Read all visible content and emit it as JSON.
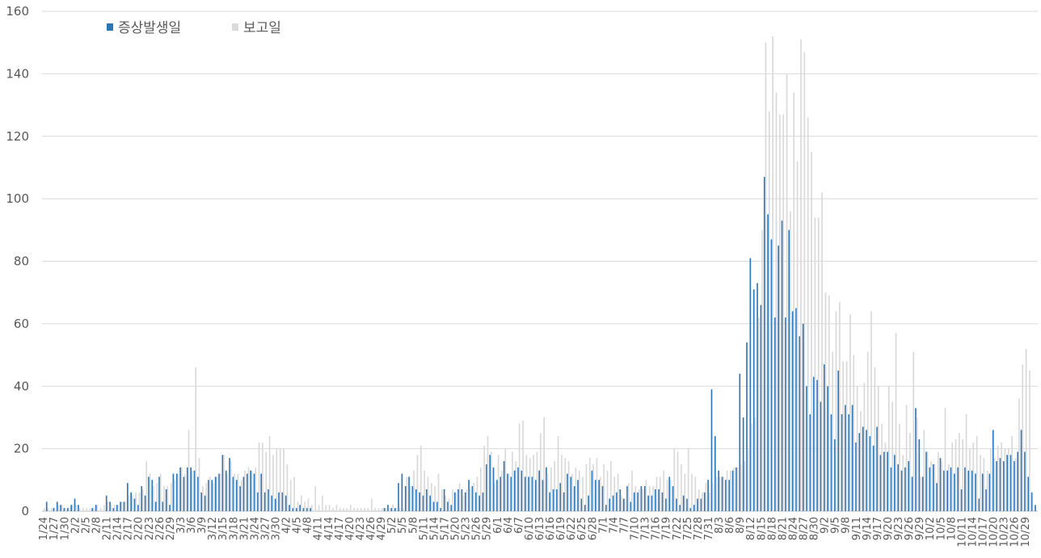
{
  "chart_data": {
    "type": "bar",
    "grouped": true,
    "ylim": [
      0,
      160
    ],
    "ytick_step": 20,
    "grid": "horizontal",
    "legend_position": "top-left",
    "start_date": "1/24",
    "end_date": "10/31",
    "x_tick_labels": [
      "1/24",
      "1/27",
      "1/30",
      "2/2",
      "2/5",
      "2/8",
      "2/11",
      "2/14",
      "2/17",
      "2/20",
      "2/23",
      "2/26",
      "2/29",
      "3/3",
      "3/6",
      "3/9",
      "3/12",
      "3/15",
      "3/18",
      "3/21",
      "3/24",
      "3/27",
      "3/30",
      "4/2",
      "4/5",
      "4/8",
      "4/11",
      "4/14",
      "4/17",
      "4/20",
      "4/23",
      "4/26",
      "4/29",
      "5/2",
      "5/5",
      "5/8",
      "5/11",
      "5/14",
      "5/17",
      "5/20",
      "5/23",
      "5/26",
      "5/29",
      "6/1",
      "6/4",
      "6/7",
      "6/10",
      "6/13",
      "6/16",
      "6/19",
      "6/22",
      "6/25",
      "6/28",
      "7/1",
      "7/4",
      "7/7",
      "7/10",
      "7/13",
      "7/16",
      "7/19",
      "7/22",
      "7/25",
      "7/28",
      "7/31",
      "8/3",
      "8/6",
      "8/9",
      "8/12",
      "8/15",
      "8/18",
      "8/21",
      "8/24",
      "8/27",
      "8/30",
      "9/2",
      "9/5",
      "9/8",
      "9/11",
      "9/14",
      "9/17",
      "9/20",
      "9/23",
      "9/26",
      "9/29",
      "10/2",
      "10/5",
      "10/8",
      "10/11",
      "10/14",
      "10/17",
      "10/20",
      "10/23",
      "10/26",
      "10/29"
    ],
    "series": [
      {
        "name": "증상발생일",
        "color": "#2e75b6",
        "values": [
          0,
          3,
          0,
          1,
          3,
          2,
          1,
          1,
          2,
          4,
          2,
          0,
          0,
          0,
          1,
          2,
          0,
          0,
          5,
          3,
          1,
          2,
          3,
          3,
          9,
          6,
          4,
          2,
          8,
          5,
          11,
          10,
          3,
          11,
          3,
          7,
          2,
          12,
          12,
          14,
          11,
          14,
          14,
          13,
          11,
          6,
          5,
          10,
          10,
          11,
          12,
          18,
          13,
          17,
          11,
          10,
          8,
          11,
          12,
          13,
          12,
          6,
          12,
          6,
          7,
          5,
          4,
          6,
          6,
          5,
          2,
          1,
          1,
          2,
          1,
          1,
          1,
          0,
          0,
          0,
          0,
          0,
          0,
          0,
          0,
          0,
          0,
          0,
          0,
          0,
          0,
          0,
          0,
          0,
          0,
          0,
          0,
          1,
          2,
          1,
          1,
          9,
          12,
          8,
          11,
          8,
          7,
          6,
          5,
          7,
          5,
          3,
          3,
          1,
          7,
          3,
          2,
          6,
          7,
          7,
          6,
          10,
          8,
          6,
          5,
          6,
          15,
          18,
          14,
          10,
          11,
          16,
          12,
          11,
          13,
          14,
          13,
          11,
          11,
          11,
          10,
          13,
          10,
          14,
          6,
          7,
          7,
          9,
          6,
          12,
          11,
          8,
          10,
          4,
          2,
          5,
          13,
          10,
          10,
          8,
          2,
          4,
          5,
          6,
          7,
          4,
          8,
          3,
          6,
          6,
          8,
          8,
          5,
          5,
          7,
          7,
          6,
          4,
          11,
          8,
          4,
          2,
          5,
          4,
          1,
          2,
          4,
          4,
          6,
          10,
          39,
          24,
          13,
          11,
          10,
          10,
          13,
          14,
          44,
          30,
          54,
          81,
          71,
          73,
          66,
          107,
          95,
          87,
          62,
          85,
          93,
          62,
          90,
          64,
          65,
          56,
          60,
          40,
          31,
          43,
          42,
          35,
          47,
          40,
          31,
          23,
          45,
          31,
          34,
          31,
          34,
          22,
          25,
          27,
          26,
          24,
          21,
          27,
          18,
          19,
          19,
          14,
          18,
          15,
          13,
          14,
          16,
          11,
          33,
          23,
          11,
          19,
          14,
          15,
          9,
          17,
          13,
          13,
          14,
          12,
          14,
          7,
          14,
          13,
          13,
          12,
          4,
          12,
          7,
          12,
          26,
          16,
          17,
          16,
          18,
          18,
          16,
          19,
          26,
          19,
          11,
          6,
          2
        ]
      },
      {
        "name": "보고일",
        "color": "#d9d9d9",
        "values": [
          1,
          1,
          1,
          1,
          2,
          2,
          1,
          1,
          2,
          2,
          1,
          1,
          1,
          1,
          1,
          2,
          1,
          2,
          3,
          2,
          2,
          2,
          3,
          3,
          5,
          5,
          6,
          6,
          7,
          16,
          12,
          8,
          9,
          12,
          8,
          8,
          9,
          10,
          12,
          14,
          12,
          26,
          13,
          46,
          17,
          8,
          9,
          11,
          9,
          11,
          12,
          18,
          12,
          16,
          12,
          12,
          10,
          13,
          14,
          13,
          14,
          22,
          22,
          19,
          24,
          18,
          20,
          20,
          20,
          15,
          10,
          11,
          3,
          5,
          3,
          4,
          2,
          8,
          2,
          5,
          2,
          2,
          1,
          2,
          1,
          1,
          1,
          2,
          1,
          1,
          1,
          1,
          1,
          4,
          1,
          1,
          1,
          1,
          1,
          2,
          1,
          1,
          1,
          11,
          8,
          13,
          18,
          21,
          13,
          11,
          9,
          8,
          12,
          7,
          5,
          4,
          7,
          6,
          9,
          5,
          7,
          7,
          9,
          11,
          14,
          21,
          24,
          19,
          9,
          18,
          13,
          20,
          12,
          19,
          16,
          28,
          29,
          18,
          17,
          18,
          19,
          25,
          30,
          12,
          14,
          16,
          24,
          18,
          17,
          16,
          12,
          14,
          13,
          11,
          15,
          17,
          15,
          17,
          11,
          15,
          13,
          16,
          11,
          12,
          5,
          4,
          9,
          13,
          8,
          7,
          7,
          10,
          8,
          8,
          11,
          11,
          13,
          10,
          10,
          20,
          19,
          15,
          12,
          20,
          12,
          11,
          7,
          6,
          9,
          6,
          9,
          11,
          11,
          11,
          13,
          13,
          14,
          14,
          15,
          16,
          20,
          28,
          30,
          62,
          90,
          150,
          128,
          152,
          134,
          127,
          127,
          140,
          96,
          134,
          112,
          151,
          147,
          126,
          115,
          94,
          94,
          102,
          70,
          69,
          51,
          64,
          67,
          48,
          48,
          63,
          50,
          40,
          32,
          41,
          51,
          64,
          46,
          40,
          28,
          22,
          40,
          35,
          57,
          28,
          18,
          34,
          25,
          51,
          30,
          11,
          26,
          19,
          16,
          15,
          19,
          16,
          33,
          15,
          22,
          23,
          25,
          23,
          31,
          20,
          22,
          24,
          18,
          17,
          13,
          20,
          17,
          21,
          22,
          20,
          20,
          24,
          17,
          36,
          47,
          52,
          45
        ]
      }
    ],
    "legend": [
      "증상발생일",
      "보고일"
    ]
  }
}
